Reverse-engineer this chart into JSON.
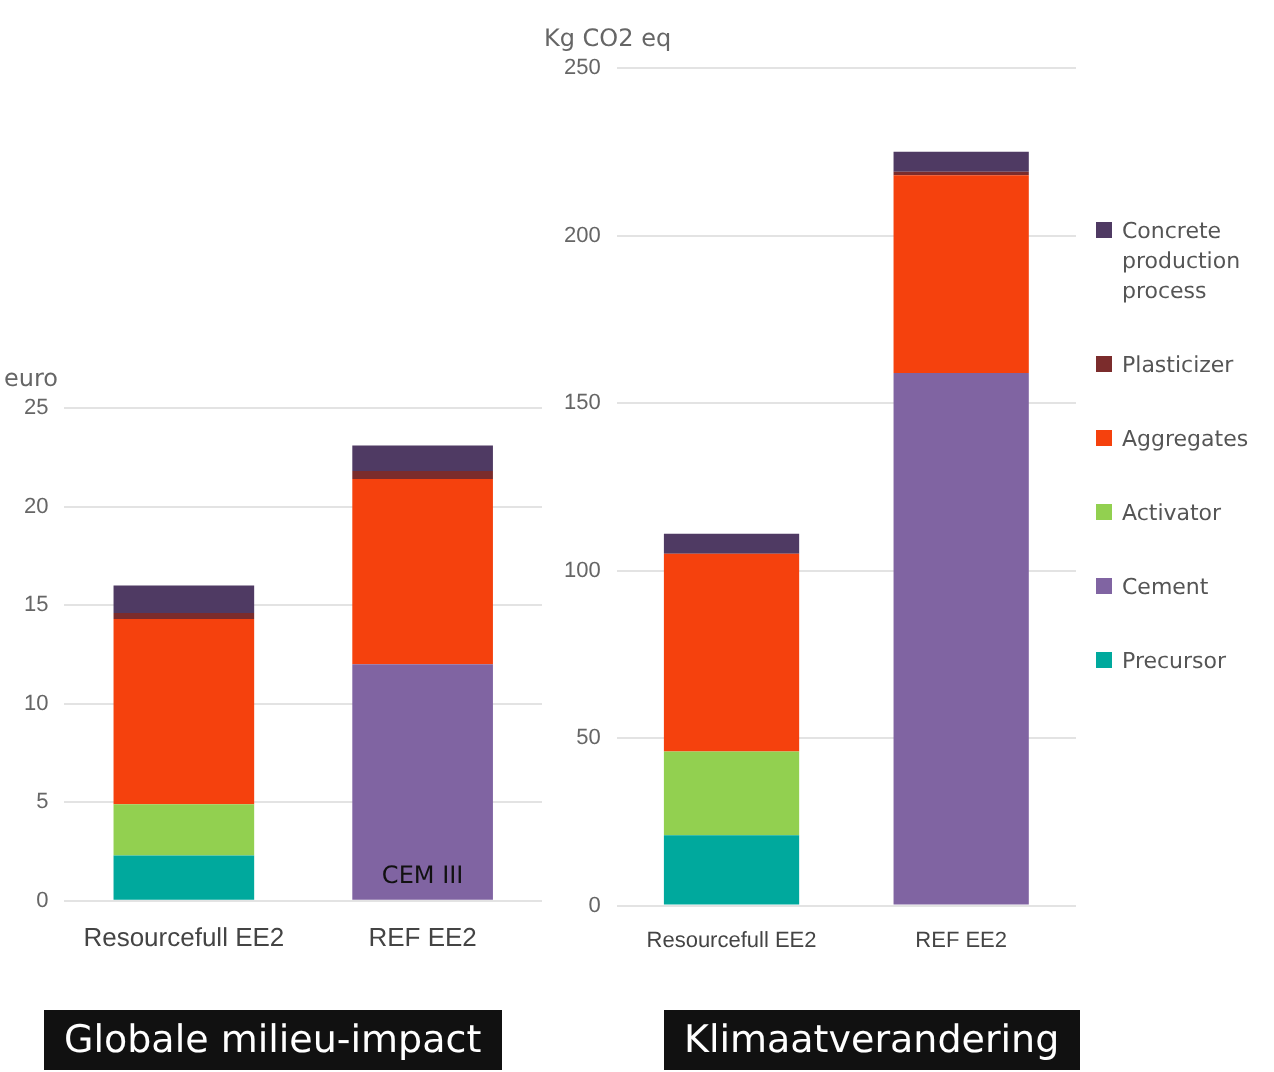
{
  "chart_data": [
    {
      "type": "bar",
      "title": "Globale milieu-impact",
      "ylabel": "euro",
      "categories": [
        "Resourcefull EE2",
        "REF EE2"
      ],
      "stacked": true,
      "ylim": [
        0,
        25
      ],
      "yticks": [
        0,
        5,
        10,
        15,
        20,
        25
      ],
      "grid": "y",
      "legend": false,
      "series": [
        {
          "color": "#00a99d",
          "values": [
            2.3,
            null
          ]
        },
        {
          "color": "#8064a2",
          "values": [
            null,
            12
          ]
        },
        {
          "color": "#92d050",
          "values": [
            2.6,
            null
          ]
        },
        {
          "color": "#f5410d",
          "values": [
            9.4,
            9.4
          ]
        },
        {
          "color": "#7b2c2c",
          "values": [
            0.3,
            0.4
          ]
        },
        {
          "color": "#4f3a63",
          "values": [
            1.4,
            1.3
          ]
        }
      ],
      "annotations": [
        "CEM III"
      ]
    },
    {
      "type": "bar",
      "title": "Klimaatverandering",
      "ylabel": "Kg CO2 eq",
      "categories": [
        "Resourcefull EE2",
        "REF EE2"
      ],
      "stacked": true,
      "ylim": [
        0,
        250
      ],
      "yticks": [
        0,
        50,
        100,
        150,
        200,
        250
      ],
      "grid": "y",
      "legend": "right",
      "series": [
        {
          "name": "Precursor",
          "color": "#00a99d",
          "values": [
            21,
            null
          ]
        },
        {
          "name": "Cement",
          "color": "#8064a2",
          "values": [
            null,
            159
          ]
        },
        {
          "name": "Activator",
          "color": "#92d050",
          "values": [
            25,
            null
          ]
        },
        {
          "name": "Aggregates",
          "color": "#f5410d",
          "values": [
            59,
            59
          ]
        },
        {
          "name": "Plasticizer",
          "color": "#7b2c2c",
          "values": [
            null,
            1
          ]
        },
        {
          "name": "Concrete production process",
          "color": "#4f3a63",
          "values": [
            6,
            6
          ]
        }
      ]
    }
  ]
}
